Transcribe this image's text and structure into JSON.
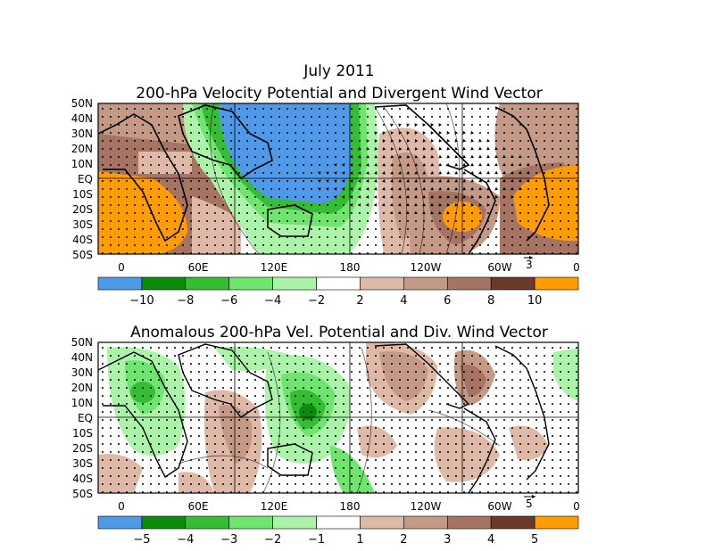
{
  "header": {
    "date": "July 2011",
    "panel1_title": "200-hPa Velocity Potential and Divergent Wind Vector",
    "panel2_title": "Anomalous 200-hPa Vel. Potential and Div. Wind Vector"
  },
  "lat_labels": [
    "50N",
    "40N",
    "30N",
    "20N",
    "10N",
    "EQ",
    "10S",
    "20S",
    "30S",
    "40S",
    "50S"
  ],
  "lon_labels": [
    "0",
    "60E",
    "120E",
    "180",
    "120W",
    "60W",
    "0"
  ],
  "panel1": {
    "vector_ref": "3",
    "colorbar": {
      "colors": [
        "#4f9ae8",
        "#0b8c0b",
        "#36bd36",
        "#6fe46f",
        "#abf3a8",
        "#ffffff",
        "#dfb9a8",
        "#c49a87",
        "#a67463",
        "#6b3a2a",
        "#ff9d00"
      ],
      "labels": [
        "-10",
        "-8",
        "-6",
        "-4",
        "-2",
        "2",
        "4",
        "6",
        "8",
        "10"
      ]
    }
  },
  "panel2": {
    "vector_ref": "5",
    "colorbar": {
      "colors": [
        "#4f9ae8",
        "#0b8c0b",
        "#36bd36",
        "#6fe46f",
        "#abf3a8",
        "#ffffff",
        "#dfb9a8",
        "#c49a87",
        "#a67463",
        "#6b3a2a",
        "#ff9d00"
      ],
      "labels": [
        "-5",
        "-4",
        "-3",
        "-2",
        "-1",
        "1",
        "2",
        "3",
        "4",
        "5"
      ]
    }
  }
}
